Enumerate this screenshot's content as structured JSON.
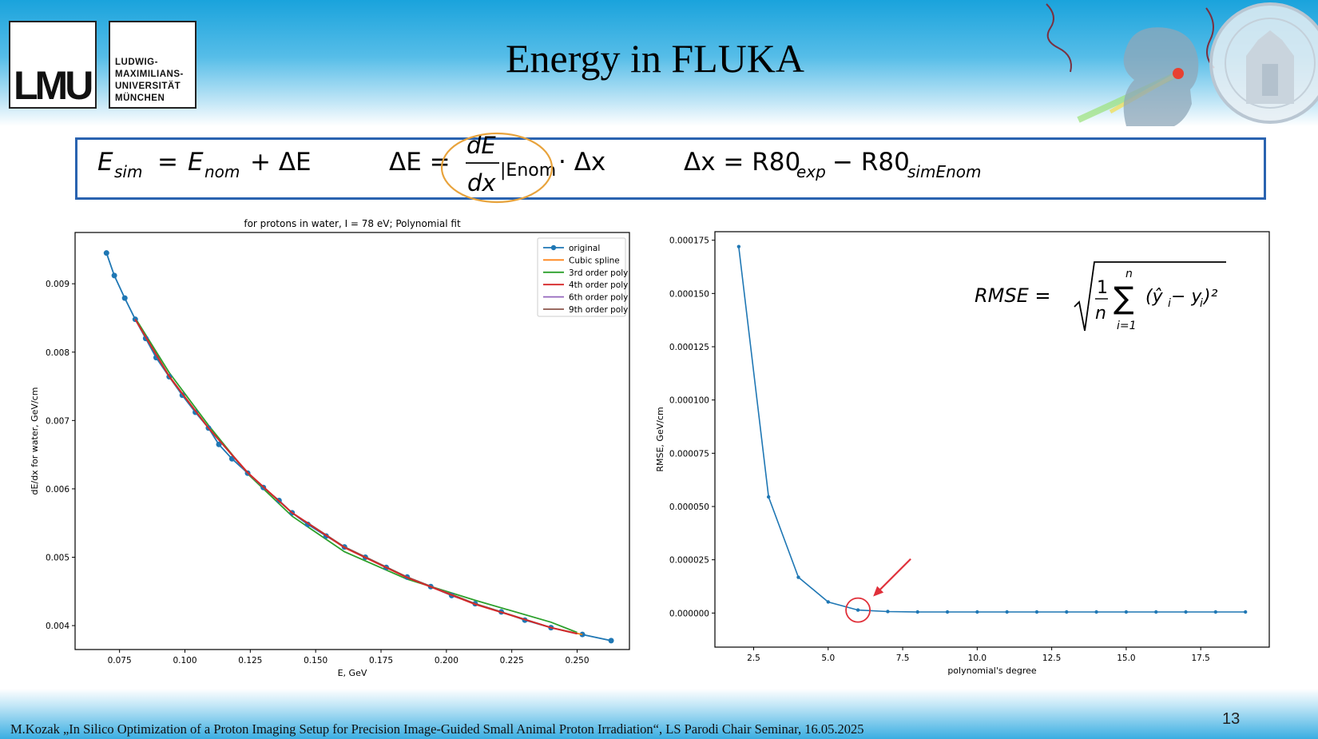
{
  "slide": {
    "title": "Energy in FLUKA",
    "logo_mark": "LMU",
    "logo_lines": [
      "LUDWIG-",
      "MAXIMILIANS-",
      "UNIVERSITÄT",
      "MÜNCHEN"
    ],
    "footer": "M.Kozak „In Silico Optimization of a Proton Imaging Setup for Precision Image-Guided Small Animal Proton Irradiation“,  LS Parodi Chair Seminar, 16.05.2025",
    "page_number": "13",
    "icons": [
      "university-seal-icon",
      "proton-head-illustration-icon",
      "red-arrow-icon"
    ],
    "highlight_colors": {
      "ellipse": "#e8a33c",
      "circle": "#e0303a",
      "box": "#2a63b0"
    }
  },
  "formulas": {
    "esim": {
      "lhs": "E",
      "lhs_sub": "sim",
      "eq": "=",
      "e1": "E",
      "e1_sub": "nom",
      "plus": "+ ΔE"
    },
    "de": {
      "lhs": "ΔE =",
      "num": "dE",
      "den": "dx",
      "eval": "|Enom",
      "tail": "· Δx"
    },
    "dx": {
      "lhs": "Δx = R80",
      "sub1": "exp",
      "minus": "− R80",
      "sub2": "simEnom"
    },
    "rmse": {
      "lhs": "RMSE =",
      "num": "1",
      "den": "n",
      "sup": "n",
      "sub": "i=1",
      "term": "(ŷ",
      "term_sub": "i",
      "minus": " − y",
      "minus_sub": "i",
      "close": ")²"
    }
  },
  "chart_data": [
    {
      "type": "line",
      "title": "for protons in water, I = 78 eV; Polynomial fit",
      "xlabel": "E, GeV",
      "ylabel": "dE/dx for water, GeV/cm",
      "xlim": [
        0.058,
        0.27
      ],
      "ylim": [
        0.00365,
        0.00975
      ],
      "xticks": [
        0.075,
        0.1,
        0.125,
        0.15,
        0.175,
        0.2,
        0.225,
        0.25
      ],
      "xtick_labels": [
        "0.075",
        "0.100",
        "0.125",
        "0.150",
        "0.175",
        "0.200",
        "0.225",
        "0.250"
      ],
      "yticks": [
        0.004,
        0.005,
        0.006,
        0.007,
        0.008,
        0.009
      ],
      "ytick_labels": [
        "0.004",
        "0.005",
        "0.006",
        "0.007",
        "0.008",
        "0.009"
      ],
      "legend_position": "top-right",
      "grid": false,
      "series": [
        {
          "name": "original",
          "color": "#1f77b4",
          "markers": true,
          "x": [
            0.07,
            0.073,
            0.077,
            0.081,
            0.085,
            0.089,
            0.094,
            0.099,
            0.104,
            0.109,
            0.113,
            0.118,
            0.124,
            0.13,
            0.136,
            0.141,
            0.147,
            0.154,
            0.161,
            0.169,
            0.177,
            0.185,
            0.194,
            0.202,
            0.211,
            0.221,
            0.23,
            0.24,
            0.252,
            0.263
          ],
          "y": [
            0.00945,
            0.00912,
            0.00879,
            0.00848,
            0.0082,
            0.00792,
            0.00764,
            0.00737,
            0.00712,
            0.00689,
            0.00665,
            0.00644,
            0.00623,
            0.00602,
            0.00583,
            0.00565,
            0.00548,
            0.00531,
            0.00515,
            0.005,
            0.00485,
            0.00471,
            0.00457,
            0.00444,
            0.00432,
            0.0042,
            0.00408,
            0.00397,
            0.00387,
            0.00378
          ]
        },
        {
          "name": "Cubic spline",
          "color": "#ff7f0e",
          "x": [
            0.081,
            0.094,
            0.109,
            0.124,
            0.141,
            0.161,
            0.185,
            0.211,
            0.24,
            0.252
          ],
          "y": [
            0.00848,
            0.00764,
            0.00689,
            0.00623,
            0.00565,
            0.00515,
            0.00471,
            0.00432,
            0.00397,
            0.00387
          ]
        },
        {
          "name": "3rd order poly",
          "color": "#2ca02c",
          "x": [
            0.081,
            0.094,
            0.109,
            0.124,
            0.141,
            0.161,
            0.185,
            0.211,
            0.24,
            0.25
          ],
          "y": [
            0.0085,
            0.0077,
            0.00693,
            0.00622,
            0.0056,
            0.00508,
            0.00468,
            0.00437,
            0.00405,
            0.0039
          ]
        },
        {
          "name": "4th order poly",
          "color": "#d62728",
          "x": [
            0.081,
            0.094,
            0.109,
            0.124,
            0.141,
            0.161,
            0.185,
            0.211,
            0.24,
            0.25
          ],
          "y": [
            0.00848,
            0.00765,
            0.00689,
            0.00624,
            0.00565,
            0.00514,
            0.0047,
            0.00431,
            0.00397,
            0.00388
          ]
        },
        {
          "name": "6th order poly",
          "color": "#9467bd",
          "x": [
            0.081,
            0.094,
            0.109,
            0.124,
            0.141,
            0.161,
            0.185,
            0.211,
            0.24,
            0.25
          ],
          "y": [
            0.00848,
            0.00764,
            0.00689,
            0.00623,
            0.00565,
            0.00515,
            0.00471,
            0.00432,
            0.00397,
            0.00388
          ]
        },
        {
          "name": "9th order poly",
          "color": "#8c564b",
          "x": [
            0.081,
            0.094,
            0.109,
            0.124,
            0.141,
            0.161,
            0.185,
            0.211,
            0.24,
            0.25
          ],
          "y": [
            0.00848,
            0.00764,
            0.00689,
            0.00623,
            0.00565,
            0.00515,
            0.00471,
            0.00432,
            0.00397,
            0.00388
          ]
        }
      ]
    },
    {
      "type": "line",
      "title": "",
      "xlabel": "polynomial's degree",
      "ylabel": "RMSE, GeV/cm",
      "xlim": [
        1.2,
        19.8
      ],
      "ylim": [
        -1.6e-05,
        0.000179
      ],
      "xticks": [
        2.5,
        5.0,
        7.5,
        10.0,
        12.5,
        15.0,
        17.5
      ],
      "xtick_labels": [
        "2.5",
        "5.0",
        "7.5",
        "10.0",
        "12.5",
        "15.0",
        "17.5"
      ],
      "yticks": [
        0.0,
        2.5e-05,
        5e-05,
        7.5e-05,
        0.0001,
        0.000125,
        0.00015,
        0.000175
      ],
      "ytick_labels": [
        "0.000000",
        "0.000025",
        "0.000050",
        "0.000075",
        "0.000100",
        "0.000125",
        "0.000150",
        "0.000175"
      ],
      "grid": false,
      "highlight_point": 6,
      "series": [
        {
          "color": "#1f77b4",
          "x": [
            2,
            3,
            4,
            5,
            6,
            7,
            8,
            9,
            10,
            11,
            12,
            13,
            14,
            15,
            16,
            17,
            18,
            19
          ],
          "y": [
            0.000172,
            5.45e-05,
            1.68e-05,
            5.2e-06,
            1.4e-06,
            7e-07,
            5e-07,
            5e-07,
            5e-07,
            5e-07,
            5e-07,
            5e-07,
            5e-07,
            5e-07,
            5e-07,
            5e-07,
            5e-07,
            5e-07
          ]
        }
      ]
    }
  ]
}
